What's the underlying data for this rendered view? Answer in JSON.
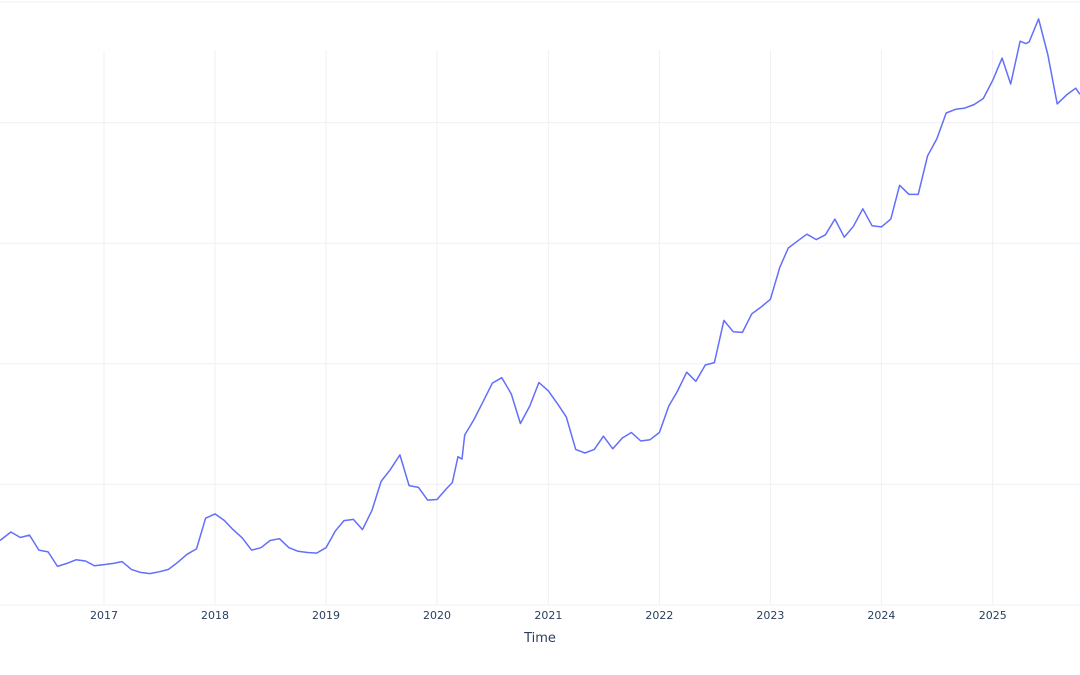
{
  "chart_data": {
    "type": "line",
    "title": "",
    "xlabel": "Time",
    "ylabel": "",
    "grid": true,
    "legend": "none",
    "x_tick_labels": [
      "2017",
      "2018",
      "2019",
      "2020",
      "2021",
      "2022",
      "2023",
      "2024",
      "2025"
    ],
    "x_range": [
      "2016-01-25",
      "2025-10-15"
    ],
    "y_range": [
      0,
      100
    ],
    "colors": {
      "series": "#636efa",
      "grid": "#eef0f5",
      "text": "#2a3f5f",
      "background": "#ffffff"
    },
    "series": [
      {
        "x": [
          "2016-01-25",
          "2016-03-01",
          "2016-04-01",
          "2016-05-01",
          "2016-06-01",
          "2016-07-01",
          "2016-08-01",
          "2016-09-01",
          "2016-10-01",
          "2016-11-01",
          "2016-12-01",
          "2017-01-01",
          "2017-02-01",
          "2017-03-01",
          "2017-04-01",
          "2017-05-01",
          "2017-06-01",
          "2017-07-01",
          "2017-08-01",
          "2017-09-01",
          "2017-10-01",
          "2017-11-01",
          "2017-12-01",
          "2018-01-01",
          "2018-02-01",
          "2018-03-01",
          "2018-04-01",
          "2018-05-01",
          "2018-06-01",
          "2018-07-01",
          "2018-08-01",
          "2018-09-01",
          "2018-10-01",
          "2018-11-01",
          "2018-12-01",
          "2019-01-01",
          "2019-02-01",
          "2019-03-01",
          "2019-04-01",
          "2019-05-01",
          "2019-06-01",
          "2019-07-01",
          "2019-08-01",
          "2019-09-01",
          "2019-10-01",
          "2019-11-01",
          "2019-12-01",
          "2020-01-01",
          "2020-02-01",
          "2020-02-20",
          "2020-03-10",
          "2020-03-23",
          "2020-04-01",
          "2020-05-01",
          "2020-06-01",
          "2020-07-01",
          "2020-08-01",
          "2020-09-01",
          "2020-10-01",
          "2020-11-01",
          "2020-12-01",
          "2021-01-01",
          "2021-02-01",
          "2021-03-01",
          "2021-04-01",
          "2021-05-01",
          "2021-06-01",
          "2021-07-01",
          "2021-08-01",
          "2021-09-01",
          "2021-10-01",
          "2021-11-01",
          "2021-12-01",
          "2022-01-01",
          "2022-02-01",
          "2022-03-01",
          "2022-04-01",
          "2022-05-01",
          "2022-06-01",
          "2022-07-01",
          "2022-08-01",
          "2022-09-01",
          "2022-10-01",
          "2022-11-01",
          "2022-12-01",
          "2023-01-01",
          "2023-02-01",
          "2023-03-01",
          "2023-04-01",
          "2023-05-01",
          "2023-06-01",
          "2023-07-01",
          "2023-08-01",
          "2023-09-01",
          "2023-10-01",
          "2023-11-01",
          "2023-12-01",
          "2024-01-01",
          "2024-02-01",
          "2024-03-01",
          "2024-04-01",
          "2024-05-01",
          "2024-06-01",
          "2024-07-01",
          "2024-08-01",
          "2024-09-01",
          "2024-10-01",
          "2024-11-01",
          "2024-12-01",
          "2025-01-01",
          "2025-02-01",
          "2025-03-01",
          "2025-04-01",
          "2025-04-20",
          "2025-05-01",
          "2025-06-01",
          "2025-07-01",
          "2025-08-01",
          "2025-09-01",
          "2025-10-01",
          "2025-10-15"
        ],
        "values": [
          10.7,
          12.1,
          11.2,
          11.6,
          9.1,
          8.8,
          6.4,
          6.9,
          7.5,
          7.3,
          6.5,
          6.7,
          6.9,
          7.2,
          5.9,
          5.4,
          5.2,
          5.5,
          5.9,
          7.1,
          8.4,
          9.3,
          14.4,
          15.1,
          14.0,
          12.5,
          11.1,
          9.1,
          9.5,
          10.7,
          11.0,
          9.5,
          8.9,
          8.7,
          8.6,
          9.5,
          12.3,
          14.0,
          14.2,
          12.5,
          15.7,
          20.5,
          22.5,
          24.9,
          19.8,
          19.5,
          17.4,
          17.5,
          19.3,
          20.3,
          24.6,
          24.2,
          28.2,
          30.7,
          33.8,
          36.8,
          37.7,
          35.0,
          30.1,
          33.0,
          36.9,
          35.5,
          33.3,
          31.2,
          25.8,
          25.2,
          25.8,
          28.0,
          25.9,
          27.7,
          28.6,
          27.2,
          27.4,
          28.6,
          33.0,
          35.4,
          38.6,
          37.1,
          39.8,
          40.2,
          47.2,
          45.3,
          45.2,
          48.3,
          49.4,
          50.7,
          56.0,
          59.2,
          60.4,
          61.5,
          60.6,
          61.4,
          64.0,
          61.0,
          62.8,
          65.7,
          62.9,
          62.7,
          64.0,
          69.6,
          68.1,
          68.1,
          74.5,
          77.3,
          81.6,
          82.2,
          82.4,
          83.0,
          84.0,
          87.0,
          90.7,
          86.4,
          93.5,
          93.1,
          93.4,
          97.2,
          91.3,
          83.1,
          84.6,
          85.7,
          84.7
        ]
      }
    ]
  }
}
